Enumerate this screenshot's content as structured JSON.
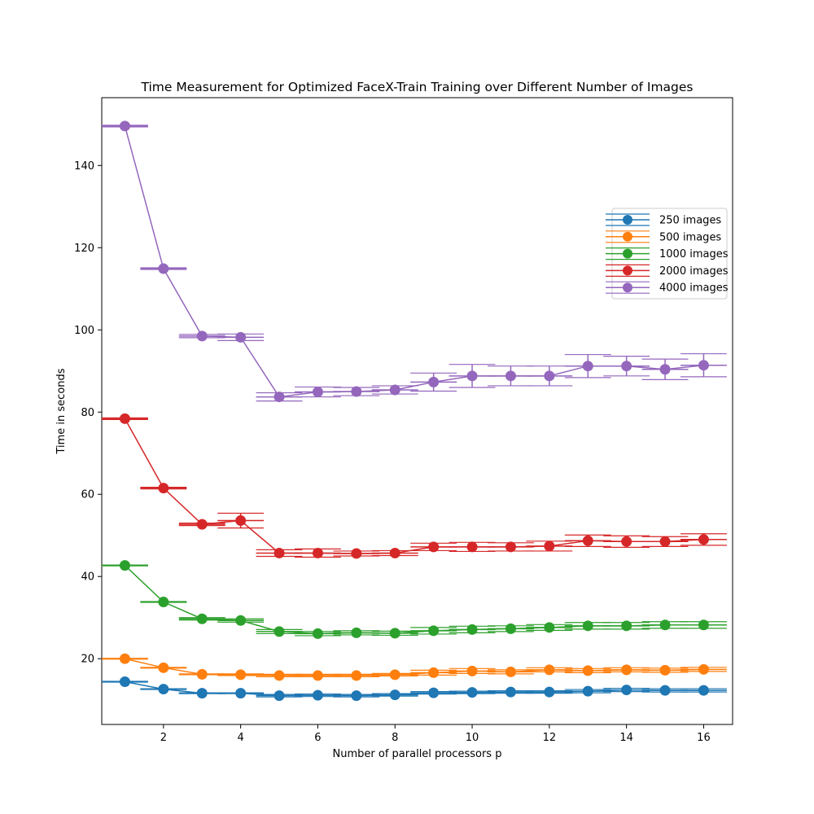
{
  "chart_data": {
    "type": "line",
    "title": "Time Measurement for Optimized FaceX-Train Training over Different Number of Images",
    "xlabel": "Number of parallel processors p",
    "ylabel": "Time in seconds",
    "xlim": [
      0.4,
      16.75
    ],
    "ylim": [
      4,
      156.5
    ],
    "xticks": [
      2,
      4,
      6,
      8,
      10,
      12,
      14,
      16
    ],
    "yticks": [
      20,
      40,
      60,
      80,
      100,
      120,
      140
    ],
    "grid": false,
    "legend_position": "center-right",
    "x": [
      1,
      2,
      3,
      4,
      5,
      6,
      7,
      8,
      9,
      10,
      11,
      12,
      13,
      14,
      15,
      16
    ],
    "series": [
      {
        "name": "250 images",
        "color": "#1f77b4",
        "values": [
          14.4,
          12.6,
          11.6,
          11.6,
          11.0,
          11.1,
          11.0,
          11.2,
          11.7,
          11.8,
          11.9,
          11.9,
          12.1,
          12.4,
          12.3,
          12.3
        ],
        "xerr": [
          0.6,
          0.6,
          0.6,
          0.6,
          0.6,
          0.6,
          0.6,
          0.6,
          0.6,
          0.6,
          0.6,
          0.6,
          0.6,
          0.6,
          0.6,
          0.6
        ],
        "yerr": [
          0.1,
          0.1,
          0.1,
          0.1,
          0.3,
          0.3,
          0.3,
          0.3,
          0.3,
          0.3,
          0.3,
          0.3,
          0.4,
          0.4,
          0.4,
          0.4
        ]
      },
      {
        "name": "500 images",
        "color": "#ff7f0e",
        "values": [
          20.0,
          17.8,
          16.2,
          16.1,
          15.9,
          15.9,
          15.9,
          16.1,
          16.6,
          17.0,
          16.8,
          17.3,
          17.1,
          17.3,
          17.2,
          17.4
        ],
        "xerr": [
          0.6,
          0.6,
          0.6,
          0.6,
          0.6,
          0.6,
          0.6,
          0.6,
          0.6,
          0.6,
          0.6,
          0.6,
          0.6,
          0.6,
          0.6,
          0.6
        ],
        "yerr": [
          0.1,
          0.1,
          0.1,
          0.2,
          0.3,
          0.3,
          0.3,
          0.3,
          0.6,
          0.6,
          0.5,
          0.5,
          0.5,
          0.5,
          0.5,
          0.5
        ]
      },
      {
        "name": "1000 images",
        "color": "#2ca02c",
        "values": [
          42.7,
          33.8,
          29.7,
          29.3,
          26.6,
          26.1,
          26.3,
          26.2,
          26.8,
          27.1,
          27.3,
          27.6,
          28.0,
          28.0,
          28.2,
          28.2
        ],
        "xerr": [
          0.6,
          0.6,
          0.6,
          0.6,
          0.6,
          0.6,
          0.6,
          0.6,
          0.6,
          0.6,
          0.6,
          0.6,
          0.6,
          0.6,
          0.6,
          0.6
        ],
        "yerr": [
          0.1,
          0.1,
          0.3,
          0.4,
          0.5,
          0.5,
          0.5,
          0.5,
          0.8,
          0.8,
          0.7,
          0.7,
          0.8,
          0.8,
          0.8,
          0.8
        ]
      },
      {
        "name": "2000 images",
        "color": "#d62728",
        "values": [
          78.4,
          61.5,
          52.7,
          53.6,
          45.7,
          45.7,
          45.6,
          45.7,
          47.2,
          47.2,
          47.2,
          47.4,
          48.7,
          48.5,
          48.5,
          49.0
        ],
        "xerr": [
          0.6,
          0.6,
          0.6,
          0.6,
          0.6,
          0.6,
          0.6,
          0.6,
          0.6,
          0.6,
          0.6,
          0.6,
          0.6,
          0.6,
          0.6,
          0.6
        ],
        "yerr": [
          0.2,
          0.2,
          0.3,
          1.8,
          0.8,
          1.0,
          0.6,
          0.6,
          0.9,
          1.1,
          1.0,
          1.2,
          1.4,
          1.4,
          1.2,
          1.4
        ]
      },
      {
        "name": "4000 images",
        "color": "#9467bd",
        "values": [
          149.6,
          114.9,
          98.5,
          98.2,
          83.7,
          84.9,
          85.0,
          85.4,
          87.3,
          88.8,
          88.8,
          88.8,
          91.2,
          91.2,
          90.4,
          91.4
        ],
        "xerr": [
          0.6,
          0.6,
          0.6,
          0.6,
          0.6,
          0.6,
          0.6,
          0.6,
          0.6,
          0.6,
          0.6,
          0.6,
          0.6,
          0.6,
          0.6,
          0.6
        ],
        "yerr": [
          0.2,
          0.2,
          0.4,
          0.8,
          1.0,
          1.2,
          1.0,
          1.0,
          2.2,
          2.8,
          2.4,
          2.4,
          2.8,
          2.4,
          2.5,
          2.8
        ]
      }
    ]
  }
}
